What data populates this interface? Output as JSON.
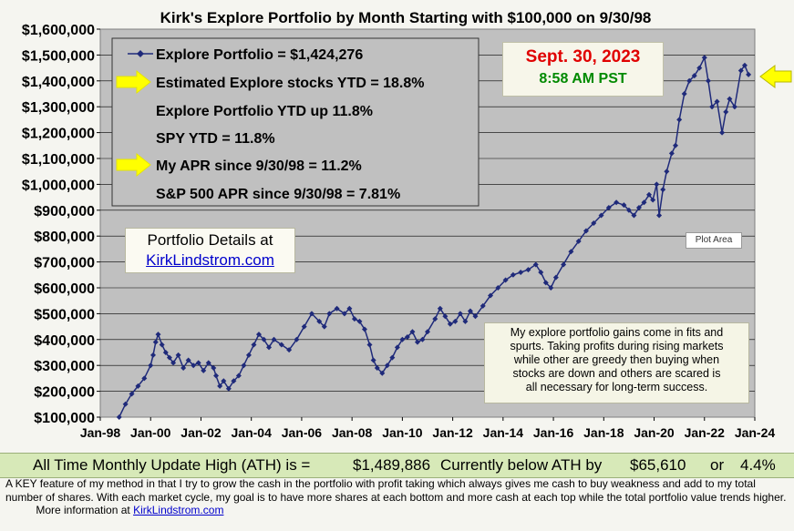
{
  "chart_data": {
    "type": "line",
    "title": "Kirk's Explore Portfolio by Month Starting with $100,000 on 9/30/98",
    "ylim": [
      100000,
      1600000
    ],
    "xlim": [
      1998.0,
      2024.0
    ],
    "y_ticks": [
      "$100,000",
      "$200,000",
      "$300,000",
      "$400,000",
      "$500,000",
      "$600,000",
      "$700,000",
      "$800,000",
      "$900,000",
      "$1,000,000",
      "$1,100,000",
      "$1,200,000",
      "$1,300,000",
      "$1,400,000",
      "$1,500,000",
      "$1,600,000"
    ],
    "x_ticks": [
      "Jan-98",
      "Jan-00",
      "Jan-02",
      "Jan-04",
      "Jan-06",
      "Jan-08",
      "Jan-10",
      "Jan-12",
      "Jan-14",
      "Jan-16",
      "Jan-18",
      "Jan-20",
      "Jan-22",
      "Jan-24"
    ],
    "series": [
      {
        "name": "Explore Portfolio",
        "color": "#1f2a7a",
        "points": [
          [
            1998.75,
            100000
          ],
          [
            1999.0,
            150000
          ],
          [
            1999.25,
            190000
          ],
          [
            1999.5,
            220000
          ],
          [
            1999.75,
            250000
          ],
          [
            2000.0,
            300000
          ],
          [
            2000.1,
            340000
          ],
          [
            2000.2,
            390000
          ],
          [
            2000.3,
            420000
          ],
          [
            2000.45,
            380000
          ],
          [
            2000.6,
            350000
          ],
          [
            2000.75,
            330000
          ],
          [
            2000.9,
            310000
          ],
          [
            2001.1,
            340000
          ],
          [
            2001.3,
            290000
          ],
          [
            2001.5,
            320000
          ],
          [
            2001.7,
            300000
          ],
          [
            2001.9,
            310000
          ],
          [
            2002.1,
            280000
          ],
          [
            2002.3,
            310000
          ],
          [
            2002.5,
            290000
          ],
          [
            2002.6,
            260000
          ],
          [
            2002.75,
            220000
          ],
          [
            2002.9,
            240000
          ],
          [
            2003.1,
            210000
          ],
          [
            2003.3,
            240000
          ],
          [
            2003.5,
            260000
          ],
          [
            2003.7,
            300000
          ],
          [
            2003.9,
            340000
          ],
          [
            2004.1,
            380000
          ],
          [
            2004.3,
            420000
          ],
          [
            2004.5,
            400000
          ],
          [
            2004.7,
            370000
          ],
          [
            2004.9,
            400000
          ],
          [
            2005.2,
            380000
          ],
          [
            2005.5,
            360000
          ],
          [
            2005.8,
            400000
          ],
          [
            2006.1,
            450000
          ],
          [
            2006.4,
            500000
          ],
          [
            2006.7,
            470000
          ],
          [
            2006.9,
            450000
          ],
          [
            2007.1,
            500000
          ],
          [
            2007.4,
            520000
          ],
          [
            2007.7,
            500000
          ],
          [
            2007.9,
            520000
          ],
          [
            2008.1,
            480000
          ],
          [
            2008.3,
            470000
          ],
          [
            2008.5,
            440000
          ],
          [
            2008.7,
            380000
          ],
          [
            2008.85,
            320000
          ],
          [
            2009.0,
            290000
          ],
          [
            2009.2,
            270000
          ],
          [
            2009.4,
            300000
          ],
          [
            2009.6,
            330000
          ],
          [
            2009.8,
            370000
          ],
          [
            2010.0,
            400000
          ],
          [
            2010.2,
            410000
          ],
          [
            2010.4,
            430000
          ],
          [
            2010.6,
            390000
          ],
          [
            2010.8,
            400000
          ],
          [
            2011.0,
            430000
          ],
          [
            2011.3,
            480000
          ],
          [
            2011.5,
            520000
          ],
          [
            2011.7,
            490000
          ],
          [
            2011.9,
            460000
          ],
          [
            2012.1,
            470000
          ],
          [
            2012.3,
            500000
          ],
          [
            2012.5,
            470000
          ],
          [
            2012.7,
            510000
          ],
          [
            2012.9,
            490000
          ],
          [
            2013.2,
            530000
          ],
          [
            2013.5,
            570000
          ],
          [
            2013.8,
            600000
          ],
          [
            2014.1,
            630000
          ],
          [
            2014.4,
            650000
          ],
          [
            2014.7,
            660000
          ],
          [
            2015.0,
            670000
          ],
          [
            2015.3,
            690000
          ],
          [
            2015.5,
            660000
          ],
          [
            2015.7,
            620000
          ],
          [
            2015.9,
            600000
          ],
          [
            2016.1,
            640000
          ],
          [
            2016.4,
            690000
          ],
          [
            2016.7,
            740000
          ],
          [
            2017.0,
            780000
          ],
          [
            2017.3,
            820000
          ],
          [
            2017.6,
            850000
          ],
          [
            2017.9,
            880000
          ],
          [
            2018.2,
            910000
          ],
          [
            2018.5,
            930000
          ],
          [
            2018.8,
            920000
          ],
          [
            2019.0,
            900000
          ],
          [
            2019.2,
            880000
          ],
          [
            2019.4,
            910000
          ],
          [
            2019.6,
            930000
          ],
          [
            2019.8,
            960000
          ],
          [
            2019.95,
            940000
          ],
          [
            2020.1,
            1000000
          ],
          [
            2020.2,
            880000
          ],
          [
            2020.35,
            980000
          ],
          [
            2020.5,
            1050000
          ],
          [
            2020.7,
            1120000
          ],
          [
            2020.85,
            1150000
          ],
          [
            2021.0,
            1250000
          ],
          [
            2021.2,
            1350000
          ],
          [
            2021.4,
            1400000
          ],
          [
            2021.6,
            1420000
          ],
          [
            2021.8,
            1450000
          ],
          [
            2022.0,
            1490000
          ],
          [
            2022.15,
            1400000
          ],
          [
            2022.3,
            1300000
          ],
          [
            2022.5,
            1320000
          ],
          [
            2022.7,
            1200000
          ],
          [
            2022.85,
            1280000
          ],
          [
            2023.0,
            1330000
          ],
          [
            2023.2,
            1300000
          ],
          [
            2023.45,
            1440000
          ],
          [
            2023.6,
            1460000
          ],
          [
            2023.75,
            1424276
          ]
        ]
      }
    ]
  },
  "legend": {
    "line1": "Explore Portfolio  =  $1,424,276",
    "line2": "Estimated Explore stocks YTD =  18.8%",
    "line3": "Explore Portfolio YTD up 11.8%",
    "line4": "SPY YTD =  11.8%",
    "line5": "My APR since 9/30/98 =  11.2%",
    "line6": "S&P 500 APR since 9/30/98 =  7.81%"
  },
  "date_box": {
    "date": "Sept. 30, 2023",
    "time": "8:58 AM PST"
  },
  "portfolio_details": {
    "line1": "Portfolio Details at",
    "link": "KirkLindstrom.com"
  },
  "note": [
    "My explore portfolio gains come in fits and",
    "spurts. Taking profits during rising markets",
    "while other are greedy then buying when",
    "stocks are down and others are scared is",
    "all necessary for long-term success."
  ],
  "plot_area_label": "Plot Area",
  "ath": {
    "label": "All Time Monthly Update High (ATH) is =",
    "value": "$1,489,886",
    "below_label": "Currently below ATH by",
    "below_value": "$65,610",
    "or": "or",
    "pct": "4.4%"
  },
  "footnote": {
    "text": "A KEY feature of my method in that I try to grow the cash in the portfolio with profit taking which always gives me cash to buy weakness and add to my total number of shares.  With each market cycle, my goal is to have more shares at each bottom and more cash at each top while the total portfolio value trends higher.",
    "more_label": "More information at",
    "link": "KirkLindstrom.com"
  },
  "colors": {
    "plot_bg": "#c0c0c0",
    "line": "#1f2a7a",
    "arrow": "#ffff00",
    "ath_bg": "#d7e9b8"
  }
}
